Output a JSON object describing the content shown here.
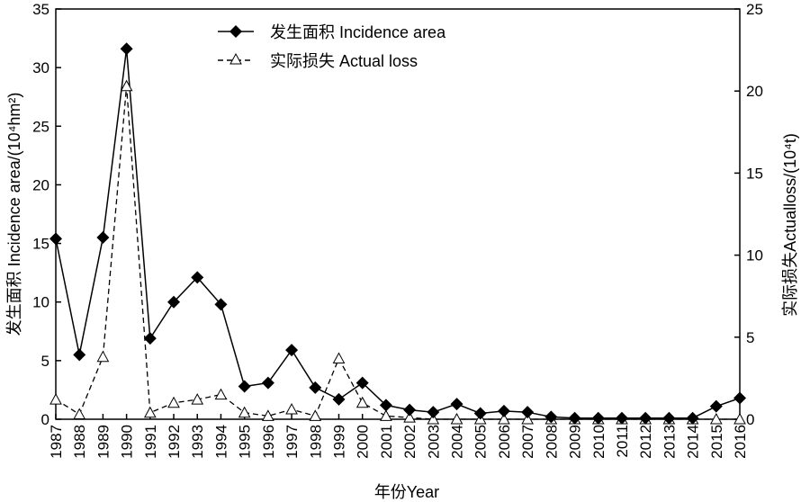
{
  "chart_data": {
    "type": "line",
    "categories": [
      "1987",
      "1988",
      "1989",
      "1990",
      "1991",
      "1992",
      "1993",
      "1994",
      "1995",
      "1996",
      "1997",
      "1998",
      "1999",
      "2000",
      "2001",
      "2002",
      "2003",
      "2004",
      "2005",
      "2006",
      "2007",
      "2008",
      "2009",
      "2010",
      "2011",
      "2012",
      "2013",
      "2014",
      "2015",
      "2016"
    ],
    "series": [
      {
        "name": "发生面积 Incidence area",
        "axis": "left",
        "marker": "filled-diamond",
        "line": "solid",
        "values": [
          15.4,
          5.5,
          15.5,
          31.6,
          6.9,
          10.0,
          12.1,
          9.8,
          2.8,
          3.1,
          5.9,
          2.7,
          1.7,
          3.1,
          1.2,
          0.8,
          0.6,
          1.3,
          0.5,
          0.7,
          0.6,
          0.2,
          0.1,
          0.1,
          0.1,
          0.1,
          0.1,
          0.1,
          1.1,
          1.8
        ]
      },
      {
        "name": "实际损失 Actual loss",
        "axis": "right",
        "marker": "open-triangle",
        "line": "dashed",
        "values": [
          1.2,
          0.3,
          3.8,
          20.3,
          0.4,
          1.0,
          1.2,
          1.5,
          0.4,
          0.2,
          0.6,
          0.2,
          3.7,
          1.0,
          0.2,
          0.1,
          0.0,
          0.0,
          0.0,
          0.0,
          0.0,
          0.0,
          0.0,
          0.0,
          0.0,
          0.0,
          0.0,
          0.0,
          0.0,
          0.0
        ]
      }
    ],
    "xlabel": "年份Year",
    "ylabel_left": "发生面积 Incidence area/(10⁴hm²)",
    "ylabel_right": "实际损失Actualloss/(10⁴t)",
    "ylim_left": [
      0,
      35
    ],
    "ylim_right": [
      0,
      25
    ],
    "yticks_left": [
      "0",
      "5",
      "10",
      "15",
      "20",
      "25",
      "30",
      "35"
    ],
    "yticks_right": [
      "0",
      "5",
      "10",
      "15",
      "20",
      "25"
    ],
    "grid": false,
    "legend_position": "top-center"
  }
}
